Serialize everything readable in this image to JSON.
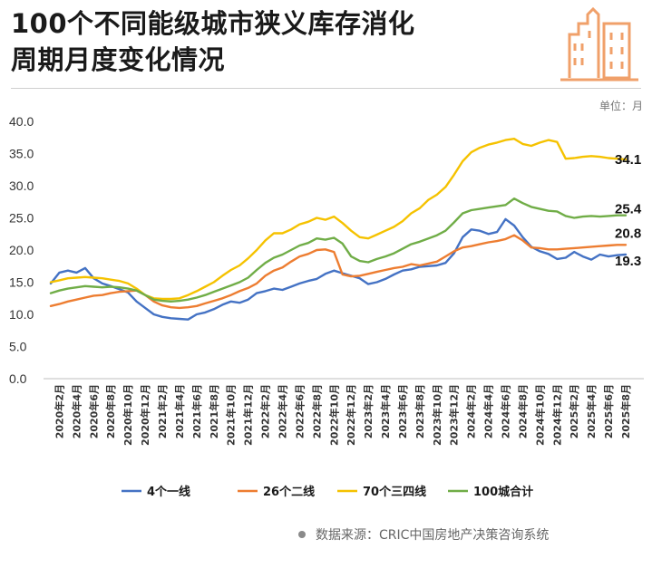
{
  "title": {
    "line1": "100个不同能级城市狭义库存消化",
    "line2": "周期月度变化情况"
  },
  "header_icon": "city-buildings-icon",
  "unit_label": "单位：月",
  "source": "数据来源：CRIC中国房地产决策咨询系统",
  "colors": {
    "tier1": "#4472c4",
    "tier2": "#ed7d31",
    "tier34": "#f5c200",
    "all100": "#70ad47"
  },
  "chart_data": {
    "type": "line",
    "x": [
      "2020年1月",
      "2020年2月",
      "2020年3月",
      "2020年4月",
      "2020年5月",
      "2020年6月",
      "2020年7月",
      "2020年8月",
      "2020年9月",
      "2020年10月",
      "2020年11月",
      "2020年12月",
      "2021年1月",
      "2021年2月",
      "2021年3月",
      "2021年4月",
      "2021年5月",
      "2021年6月",
      "2021年7月",
      "2021年8月",
      "2021年9月",
      "2021年10月",
      "2021年11月",
      "2021年12月",
      "2022年1月",
      "2022年2月",
      "2022年3月",
      "2022年4月",
      "2022年5月",
      "2022年6月",
      "2022年7月",
      "2022年8月",
      "2022年9月",
      "2022年10月",
      "2022年11月",
      "2022年12月",
      "2023年1月",
      "2023年2月",
      "2023年3月",
      "2023年4月",
      "2023年5月",
      "2023年6月",
      "2023年7月",
      "2023年8月",
      "2023年9月",
      "2023年10月",
      "2023年11月",
      "2023年12月",
      "2024年1月",
      "2024年2月",
      "2024年3月",
      "2024年4月",
      "2024年5月",
      "2024年6月",
      "2024年7月",
      "2024年8月",
      "2024年9月",
      "2024年10月",
      "2024年11月",
      "2024年12月",
      "2025年1月",
      "2025年2月",
      "2025年3月",
      "2025年4月",
      "2025年5月",
      "2025年6月",
      "2025年7月",
      "2025年8月"
    ],
    "tick_labels": [
      "2020年2月",
      "2020年4月",
      "2020年6月",
      "2020年8月",
      "2020年10月",
      "2020年12月",
      "2021年2月",
      "2021年4月",
      "2021年6月",
      "2021年8月",
      "2021年10月",
      "2021年12月",
      "2022年2月",
      "2022年4月",
      "2022年6月",
      "2022年8月",
      "2022年10月",
      "2022年12月",
      "2023年2月",
      "2023年4月",
      "2023年6月",
      "2023年8月",
      "2023年10月",
      "2023年12月",
      "2024年2月",
      "2024年4月",
      "2024年6月",
      "2024年8月",
      "2024年10月",
      "2024年12月",
      "2025年2月",
      "2025年4月",
      "2025年6月",
      "2025年8月"
    ],
    "y_ticks": [
      "0.0",
      "5.0",
      "10.0",
      "15.0",
      "20.0",
      "25.0",
      "30.0",
      "35.0",
      "40.0"
    ],
    "ylim": [
      0,
      40
    ],
    "series": [
      {
        "name": "4个一线",
        "color_key": "tier1",
        "end_label": "19.3",
        "values": [
          14.8,
          16.5,
          16.8,
          16.5,
          17.2,
          15.6,
          14.8,
          14.4,
          13.9,
          13.4,
          12.0,
          11.0,
          10.0,
          9.6,
          9.4,
          9.3,
          9.2,
          10.0,
          10.3,
          10.8,
          11.5,
          12.0,
          11.8,
          12.3,
          13.3,
          13.6,
          14.0,
          13.8,
          14.3,
          14.8,
          15.2,
          15.5,
          16.3,
          16.8,
          16.4,
          16.0,
          15.6,
          14.7,
          15.0,
          15.5,
          16.2,
          16.8,
          17.0,
          17.4,
          17.5,
          17.6,
          18.0,
          19.5,
          22.0,
          23.2,
          23.0,
          22.5,
          22.8,
          24.8,
          23.8,
          22.0,
          20.5,
          19.8,
          19.4,
          18.6,
          18.8,
          19.7,
          19.0,
          18.5,
          19.3,
          19.0,
          19.2,
          19.3
        ]
      },
      {
        "name": "26个二线",
        "color_key": "tier2",
        "end_label": "20.8",
        "values": [
          11.3,
          11.6,
          12.0,
          12.3,
          12.6,
          12.9,
          13.0,
          13.3,
          13.5,
          13.6,
          13.7,
          13.0,
          12.0,
          11.4,
          11.1,
          11.0,
          11.1,
          11.3,
          11.7,
          12.1,
          12.5,
          13.0,
          13.6,
          14.1,
          14.8,
          16.0,
          16.8,
          17.3,
          18.2,
          19.0,
          19.4,
          20.0,
          20.1,
          19.7,
          16.2,
          15.9,
          16.0,
          16.3,
          16.6,
          16.9,
          17.2,
          17.4,
          17.8,
          17.6,
          17.9,
          18.2,
          19.0,
          19.8,
          20.4,
          20.6,
          20.9,
          21.2,
          21.4,
          21.7,
          22.3,
          21.5,
          20.4,
          20.3,
          20.1,
          20.1,
          20.2,
          20.3,
          20.4,
          20.5,
          20.6,
          20.7,
          20.8,
          20.8
        ]
      },
      {
        "name": "70个三四线",
        "color_key": "tier34",
        "end_label": "34.1",
        "values": [
          15.0,
          15.3,
          15.6,
          15.7,
          15.8,
          15.7,
          15.6,
          15.4,
          15.2,
          14.8,
          14.0,
          13.0,
          12.5,
          12.4,
          12.4,
          12.5,
          13.0,
          13.6,
          14.3,
          15.0,
          16.0,
          16.9,
          17.6,
          18.7,
          20.0,
          21.5,
          22.6,
          22.6,
          23.2,
          24.0,
          24.4,
          25.0,
          24.7,
          25.2,
          24.2,
          23.0,
          22.0,
          21.8,
          22.4,
          23.0,
          23.6,
          24.5,
          25.7,
          26.5,
          27.8,
          28.6,
          29.8,
          31.7,
          33.8,
          35.2,
          35.9,
          36.4,
          36.7,
          37.1,
          37.3,
          36.5,
          36.2,
          36.7,
          37.1,
          36.8,
          34.2,
          34.3,
          34.5,
          34.6,
          34.5,
          34.3,
          34.2,
          34.1
        ]
      },
      {
        "name": "100城合计",
        "color_key": "all100",
        "end_label": "25.4",
        "values": [
          13.3,
          13.7,
          14.0,
          14.2,
          14.4,
          14.3,
          14.2,
          14.3,
          14.2,
          14.0,
          13.7,
          13.0,
          12.3,
          12.1,
          12.0,
          12.1,
          12.3,
          12.6,
          13.0,
          13.5,
          14.0,
          14.5,
          15.0,
          15.7,
          16.9,
          18.0,
          18.8,
          19.3,
          20.0,
          20.7,
          21.1,
          21.8,
          21.6,
          21.9,
          21.0,
          19.0,
          18.3,
          18.1,
          18.6,
          19.0,
          19.5,
          20.2,
          20.9,
          21.3,
          21.8,
          22.3,
          23.0,
          24.3,
          25.7,
          26.2,
          26.4,
          26.6,
          26.8,
          27.0,
          28.0,
          27.3,
          26.7,
          26.4,
          26.1,
          26.0,
          25.3,
          25.0,
          25.2,
          25.3,
          25.2,
          25.3,
          25.4,
          25.4
        ]
      }
    ],
    "legend_position": "bottom"
  }
}
